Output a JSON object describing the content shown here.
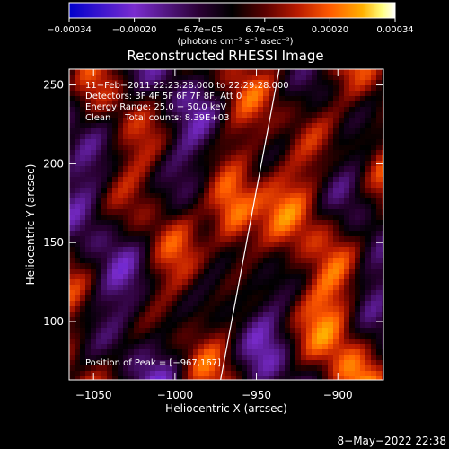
{
  "chart_data": {
    "type": "heatmap",
    "title": "Reconstructed RHESSI Image",
    "xlabel": "Heliocentric X (arcsec)",
    "ylabel": "Heliocentric Y (arcsec)",
    "xlim": [
      -1065,
      -872
    ],
    "ylim": [
      63,
      260
    ],
    "x_ticks": [
      -1050,
      -1000,
      -950,
      -900
    ],
    "x_tick_labels": [
      "−1050",
      "−1000",
      "−950",
      "−900"
    ],
    "y_ticks": [
      100,
      150,
      200,
      250
    ],
    "y_tick_labels": [
      "100",
      "150",
      "200",
      "250"
    ],
    "colorbar": {
      "range": [
        -0.00034,
        0.00034
      ],
      "tick_labels": [
        "−0.00034",
        "−0.00020",
        "−6.7e−05",
        "6.7e−05",
        "0.00020",
        "0.00034"
      ],
      "units_label": "(photons cm⁻² s⁻¹ asec⁻²)",
      "colors": [
        "#0000cc",
        "#7a2ccf",
        "#2a0033",
        "#000000",
        "#5a0000",
        "#b81a00",
        "#ff5a00",
        "#ffb000",
        "#ffff80",
        "#ffffff"
      ]
    },
    "annotations": [
      "11−Feb−2011 22:23:28.000 to 22:29:28.000",
      "Detectors: 3F 4F 5F 6F 7F 8F, Att 0",
      "Energy Range: 25.0 − 50.0 keV",
      "Clean     Total counts: 8.39E+03"
    ],
    "peak_label": "Position of Peak = [−967,167]",
    "peak": [
      -967,
      167
    ],
    "limb_line": {
      "x": [
        -972,
        -936
      ],
      "y": [
        63,
        260
      ]
    },
    "grid": false
  },
  "footer": {
    "timestamp": "8−May−2022 22:38"
  }
}
